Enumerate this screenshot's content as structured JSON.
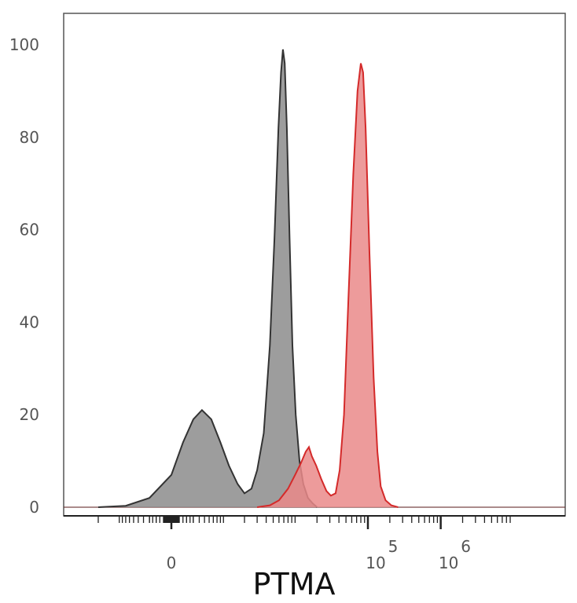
{
  "chart_data": {
    "type": "area",
    "title": "",
    "xlabel": "PTMA",
    "ylabel": "",
    "xscale": "biexponential",
    "ylim": [
      0,
      100
    ],
    "yticks": [
      0,
      20,
      40,
      60,
      80,
      100
    ],
    "xticks": [
      {
        "label": "0",
        "value": 0
      },
      {
        "label": "10",
        "sup": "5",
        "value": 100000
      },
      {
        "label": "10",
        "sup": "6",
        "value": 1000000
      }
    ],
    "grid": false,
    "legend": "none",
    "series": [
      {
        "color": "#333333",
        "fill": "#8c8c8c",
        "points": [
          [
            -2000,
            0
          ],
          [
            -800,
            0.3
          ],
          [
            -300,
            2
          ],
          [
            0,
            7
          ],
          [
            150,
            14
          ],
          [
            300,
            19
          ],
          [
            450,
            21
          ],
          [
            650,
            19
          ],
          [
            900,
            14
          ],
          [
            1200,
            9
          ],
          [
            1600,
            5
          ],
          [
            2000,
            3
          ],
          [
            2500,
            4
          ],
          [
            3000,
            8
          ],
          [
            3700,
            16
          ],
          [
            4500,
            35
          ],
          [
            5200,
            58
          ],
          [
            5900,
            82
          ],
          [
            6400,
            94
          ],
          [
            6800,
            99
          ],
          [
            7200,
            96
          ],
          [
            7700,
            82
          ],
          [
            8400,
            58
          ],
          [
            9200,
            35
          ],
          [
            10200,
            20
          ],
          [
            11500,
            10
          ],
          [
            13000,
            5
          ],
          [
            15000,
            2
          ],
          [
            17500,
            0.8
          ],
          [
            20000,
            0
          ]
        ]
      },
      {
        "color": "#d42a2a",
        "fill": "#ea8a8a",
        "points": [
          [
            3000,
            0
          ],
          [
            4500,
            0.4
          ],
          [
            6000,
            1.5
          ],
          [
            8000,
            4
          ],
          [
            10000,
            7
          ],
          [
            12000,
            9.5
          ],
          [
            14000,
            12
          ],
          [
            15500,
            13
          ],
          [
            17000,
            11
          ],
          [
            19500,
            9
          ],
          [
            23000,
            6
          ],
          [
            27000,
            3.5
          ],
          [
            31000,
            2.5
          ],
          [
            36000,
            3
          ],
          [
            41000,
            8
          ],
          [
            47000,
            20
          ],
          [
            54000,
            45
          ],
          [
            63000,
            72
          ],
          [
            72000,
            90
          ],
          [
            80000,
            96
          ],
          [
            86000,
            94
          ],
          [
            93000,
            82
          ],
          [
            105000,
            55
          ],
          [
            120000,
            28
          ],
          [
            135000,
            12
          ],
          [
            150000,
            4.5
          ],
          [
            175000,
            1.5
          ],
          [
            210000,
            0.4
          ],
          [
            260000,
            0
          ]
        ]
      }
    ]
  }
}
